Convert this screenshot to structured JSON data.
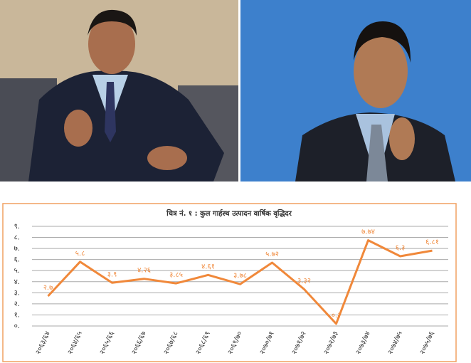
{
  "chart_data": {
    "type": "line",
    "title": "चित्र नं. १ : कुल गार्हस्थ उत्पादन वार्षिक वृद्धिदर",
    "categories": [
      "२०६३/६४",
      "२०६४/६५",
      "२०६५/६६",
      "२०६६/६७",
      "२०६७/६८",
      "२०६८/६९",
      "२०६९/७०",
      "२०७०/७१",
      "२०७१/७२",
      "२०७२/७३",
      "२०७३/७४",
      "२०७४/७५",
      "२०७५/७६"
    ],
    "values": [
      2.7,
      5.8,
      3.9,
      4.26,
      3.85,
      4.61,
      3.78,
      5.72,
      3.32,
      0.2,
      7.74,
      6.3,
      6.81
    ],
    "value_labels": [
      "२.७",
      "५.८",
      "३.९",
      "४.२६",
      "३.८५",
      "४.६१",
      "३.७८",
      "५.७२",
      "३.३२",
      "०.२",
      "७.७४",
      "६.३",
      "६.८१"
    ],
    "color": "#f0883a",
    "ylim": [
      0,
      9
    ],
    "yticks": [
      {
        "value": 0,
        "label": "०."
      },
      {
        "value": 1,
        "label": "१."
      },
      {
        "value": 2,
        "label": "२."
      },
      {
        "value": 3,
        "label": "३."
      },
      {
        "value": 4,
        "label": "४."
      },
      {
        "value": 5,
        "label": "५."
      },
      {
        "value": 6,
        "label": "६."
      },
      {
        "value": 7,
        "label": "७."
      },
      {
        "value": 8,
        "label": "८."
      },
      {
        "value": 9,
        "label": "९."
      }
    ],
    "grid": true
  }
}
